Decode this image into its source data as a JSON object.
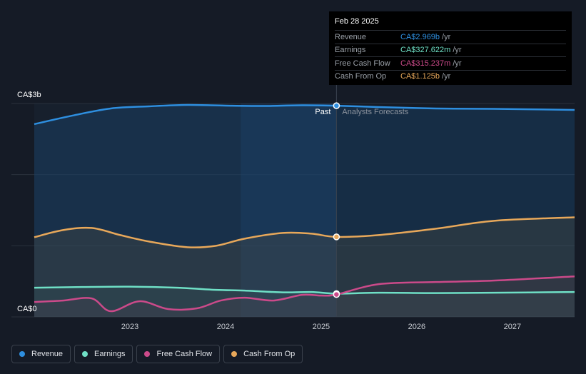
{
  "colors": {
    "revenue": "#2e8fe0",
    "earnings": "#6fe0c6",
    "free_cash_flow": "#cc4a8a",
    "cash_from_op": "#e8a85a"
  },
  "tooltip": {
    "date": "Feb 28 2025",
    "rows": [
      {
        "label": "Revenue",
        "value": "CA$2.969b",
        "unit": "/yr"
      },
      {
        "label": "Earnings",
        "value": "CA$327.622m",
        "unit": "/yr"
      },
      {
        "label": "Free Cash Flow",
        "value": "CA$315.237m",
        "unit": "/yr"
      },
      {
        "label": "Cash From Op",
        "value": "CA$1.125b",
        "unit": "/yr"
      }
    ]
  },
  "legend": [
    {
      "label": "Revenue"
    },
    {
      "label": "Earnings"
    },
    {
      "label": "Free Cash Flow"
    },
    {
      "label": "Cash From Op"
    }
  ],
  "chart_data": {
    "type": "area",
    "x_unit": "year",
    "xlim": [
      2022.0,
      2027.65
    ],
    "ylim": [
      0,
      3000
    ],
    "y_unit": "CA$ millions",
    "y_tick_labels": [
      {
        "value": 3000,
        "label": "CA$3b"
      },
      {
        "value": 0,
        "label": "CA$0"
      }
    ],
    "x_ticks": [
      {
        "value": 2023,
        "label": "2023"
      },
      {
        "value": 2024,
        "label": "2024"
      },
      {
        "value": 2025,
        "label": "2025"
      },
      {
        "value": 2026,
        "label": "2026"
      },
      {
        "value": 2027,
        "label": "2027"
      }
    ],
    "divider_x": 2025.16,
    "highlight_start_x": 2024.16,
    "past_label": "Past",
    "forecast_label": "Analysts Forecasts",
    "series": [
      {
        "name": "Revenue",
        "key": "revenue",
        "points": [
          [
            2022.0,
            2710
          ],
          [
            2022.4,
            2830
          ],
          [
            2022.8,
            2930
          ],
          [
            2023.2,
            2960
          ],
          [
            2023.6,
            2980
          ],
          [
            2024.0,
            2970
          ],
          [
            2024.4,
            2965
          ],
          [
            2024.8,
            2975
          ],
          [
            2025.16,
            2969
          ],
          [
            2025.6,
            2950
          ],
          [
            2026.2,
            2930
          ],
          [
            2026.8,
            2925
          ],
          [
            2027.65,
            2910
          ]
        ]
      },
      {
        "name": "Cash From Op",
        "key": "cash_from_op",
        "points": [
          [
            2022.0,
            1120
          ],
          [
            2022.3,
            1220
          ],
          [
            2022.6,
            1250
          ],
          [
            2022.9,
            1150
          ],
          [
            2023.2,
            1060
          ],
          [
            2023.6,
            980
          ],
          [
            2023.9,
            1000
          ],
          [
            2024.2,
            1100
          ],
          [
            2024.6,
            1180
          ],
          [
            2024.9,
            1170
          ],
          [
            2025.16,
            1125
          ],
          [
            2025.6,
            1150
          ],
          [
            2026.2,
            1240
          ],
          [
            2026.8,
            1350
          ],
          [
            2027.65,
            1400
          ]
        ]
      },
      {
        "name": "Earnings",
        "key": "earnings",
        "points": [
          [
            2022.0,
            410
          ],
          [
            2022.5,
            420
          ],
          [
            2023.0,
            425
          ],
          [
            2023.5,
            410
          ],
          [
            2023.9,
            380
          ],
          [
            2024.2,
            370
          ],
          [
            2024.6,
            345
          ],
          [
            2024.9,
            350
          ],
          [
            2025.16,
            327
          ],
          [
            2025.6,
            340
          ],
          [
            2026.2,
            335
          ],
          [
            2026.8,
            340
          ],
          [
            2027.65,
            350
          ]
        ]
      },
      {
        "name": "Free Cash Flow",
        "key": "free_cash_flow",
        "points": [
          [
            2022.0,
            210
          ],
          [
            2022.3,
            230
          ],
          [
            2022.6,
            260
          ],
          [
            2022.8,
            80
          ],
          [
            2023.1,
            220
          ],
          [
            2023.4,
            110
          ],
          [
            2023.7,
            120
          ],
          [
            2023.95,
            230
          ],
          [
            2024.2,
            270
          ],
          [
            2024.5,
            230
          ],
          [
            2024.8,
            310
          ],
          [
            2025.0,
            300
          ],
          [
            2025.16,
            315
          ],
          [
            2025.6,
            460
          ],
          [
            2026.2,
            490
          ],
          [
            2026.8,
            510
          ],
          [
            2027.65,
            570
          ]
        ]
      }
    ],
    "markers_at": 2025.16
  }
}
